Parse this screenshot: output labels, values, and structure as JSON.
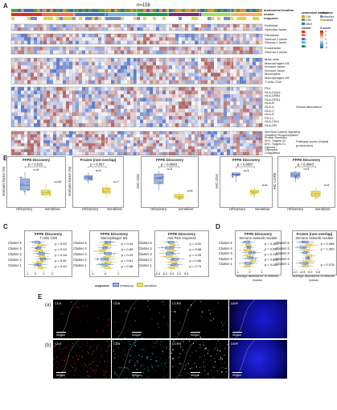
{
  "panel_a": {
    "letter": "A",
    "n_label": "n=158",
    "header_rows": [
      "anatomical location",
      "cluster",
      "response"
    ],
    "legend": {
      "anatomical_title": "anatomical location",
      "anatomical_items": [
        "CIH",
        "CIM",
        "other"
      ],
      "anatomical_colors": [
        "#e8912c",
        "#5aa02c",
        "#3b6fb6"
      ],
      "response_title": "response",
      "response_items": [
        "refractory",
        "sensitive"
      ],
      "response_colors": [
        "#6b8fd6",
        "#e7d43a"
      ],
      "cluster_title": "cluster",
      "cluster_items": [
        "1",
        "2",
        "3",
        "4",
        "5"
      ],
      "cluster_colors": [
        "#d73027",
        "#f46d43",
        "#4575b4",
        "#74add1",
        "#1a9850"
      ],
      "zscore_title": "Z-score",
      "zscore_ticks": [
        "4",
        "2",
        "0",
        "-2",
        "-4"
      ]
    },
    "group1_rows": [
      "Epithelial",
      "Opticdisk factor"
    ],
    "group2_rows": [
      "Fibroblast",
      "Stromal 1 factor",
      "Stroma-1 factor"
    ],
    "group3_rows": [
      "Endothelial",
      "Stromal 2 factor"
    ],
    "group4_rows": [
      "Mast cells",
      "Macrophages M1",
      "Immune factor",
      "Immune factor",
      "Monocytes",
      "Macrophages M2",
      "T cells CD8"
    ],
    "group5_rows": [
      "PD1",
      "HLA-DQA1",
      "HLA-DRB1",
      "HLA-DPA1",
      "HLA-B",
      "HLA-A",
      "HLA-C",
      "HLA-E",
      "PD-L1",
      "HLA-Clin1",
      "HLA-DR"
    ],
    "group5_side": "Global abundance",
    "group6_rows": [
      "Wnt Beta Catenin Signaling",
      "Oxidative Phosphorylation",
      "Protein Secretion",
      "MYC Targets V2",
      "MYC Targets V1",
      "Hypoxia",
      "Glycolysis",
      "Coagulation",
      "Complement Signaling",
      "TGF Beta Signaling",
      "Angiogenesis",
      "Epithelial Mesenchymal Transition",
      "Allograft Rejection",
      "Inflammatory Response",
      "IL6 JAK STAT3 Signaling",
      "Interferon Gamma Response"
    ],
    "group6_side": "Pathway score (Global proteomics)"
  },
  "panel_b": {
    "letter": "B",
    "plots": [
      {
        "title": "FFPE Discovery",
        "ylabel": "Immune factor (%)",
        "p": "p = 0.015",
        "n1": "n=9",
        "n2": "n=20",
        "x1": "refractory",
        "x2": "sensitive"
      },
      {
        "title": "Frozen (non-overlap)",
        "ylabel": "Immune factor (%)",
        "p": "p = 0.067",
        "n1": "n=5",
        "n2": "n=7",
        "x1": "refractory",
        "x2": "sensitive"
      },
      {
        "title": "FFPE Discovery",
        "ylabel": "IHC CD8",
        "p": "p = 0.0043",
        "n1": "n=3",
        "n2": "n=6",
        "x1": "refractory",
        "x2": "sensitive"
      },
      {
        "title": "FFPE Discovery",
        "ylabel": "IHC CD4",
        "p": "p = 0.0087",
        "n1": "n=3",
        "n2": "n=6",
        "x1": "refractory",
        "x2": "sensitive"
      },
      {
        "title": "FFPE Discovery",
        "ylabel": "IHC CCR5",
        "p": "p = 0.0043",
        "n1": "n=3",
        "n2": "n=6",
        "x1": "refractory",
        "x2": "sensitive"
      }
    ]
  },
  "panel_c": {
    "letter": "C",
    "plots": [
      {
        "title": "FFPE Discovery",
        "subtitle": "T cells CD8",
        "pvals": [
          "p = 0.02",
          "p = 0.15",
          "p = 0.94",
          "p = 0.81",
          "p = 0.44"
        ],
        "ticks": [
          "-1",
          "0",
          "1",
          "2"
        ]
      },
      {
        "title": "FFPE Discovery",
        "subtitle": "Macrophages M1",
        "pvals": [
          "p = 0.04",
          "p = 0.89",
          "p = 0.23",
          "p = 0.61",
          "p = 0.56"
        ],
        "ticks": [
          "-1",
          "0",
          "1"
        ]
      },
      {
        "title": "FFPE Discovery",
        "subtitle": "Anti PD1 response",
        "pvals": [
          "p = 0.02",
          "p = 0.58",
          "p = 0.25",
          "p = 0.56",
          "p = 0.74"
        ],
        "ticks": [
          "-0.4",
          "-0.2",
          "0.0",
          "0.2",
          "0.4"
        ]
      }
    ],
    "clusters": [
      "Cluster 5",
      "Cluster 4",
      "Cluster 3",
      "Cluster 2",
      "Cluster 1"
    ],
    "legend_title": "response",
    "legend_items": [
      "refractory",
      "sensitive"
    ]
  },
  "panel_d": {
    "letter": "D",
    "plots": [
      {
        "title": "FFPE Discovery",
        "subtitle": "Immune network module",
        "pvals": [
          "p = 0.383",
          "p = 0.087",
          "p = 0.115",
          "p = 0.888",
          "p = 0.281"
        ],
        "xlabel": "average abundance of network module",
        "ticks": [
          "-1",
          "0",
          "1"
        ]
      },
      {
        "title": "Frozen (non-overlap)",
        "subtitle": "Immune network module",
        "pvals": [
          "p = 0.085",
          "p = 1.000",
          "",
          "",
          "p = 0.375"
        ],
        "xlabel": "average abundance of network module",
        "ticks": [
          "-1.0",
          "-0.5",
          "0.0",
          "0.5"
        ]
      }
    ],
    "clusters": [
      "Cluster 5",
      "Cluster 4",
      "Cluster 3",
      "Cluster 2",
      "Cluster 1"
    ]
  },
  "panel_e": {
    "letter": "E",
    "row_a": "(a)",
    "row_b": "(b)",
    "channels": [
      "CD4",
      "CD8",
      "CCR5",
      "DAPI"
    ],
    "scale": "500μm"
  }
}
